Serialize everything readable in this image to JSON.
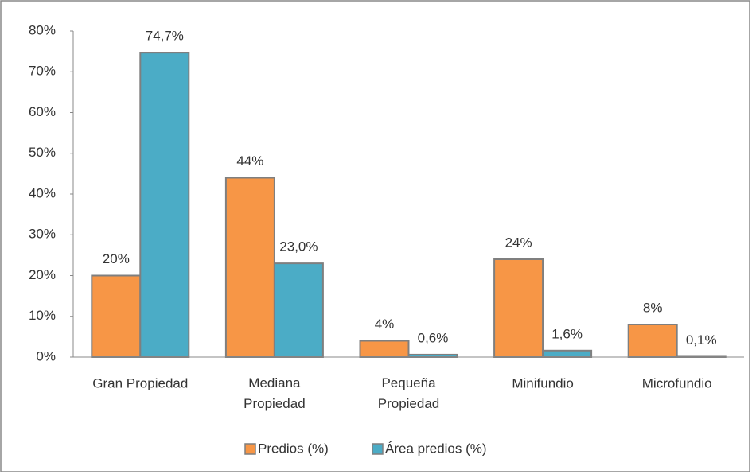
{
  "chart_data": {
    "type": "bar",
    "categories": [
      "Gran Propiedad",
      "Mediana\nPropiedad",
      "Pequeña\nPropiedad",
      "Minifundio",
      "Microfundio"
    ],
    "series": [
      {
        "name": "Predios (%)",
        "color": "#f79646",
        "values": [
          20,
          44,
          4,
          24,
          8
        ],
        "value_labels": [
          "20%",
          "44%",
          "4%",
          "24%",
          "8%"
        ]
      },
      {
        "name": "Área predios (%)",
        "color": "#4bacc6",
        "values": [
          74.7,
          23.0,
          0.6,
          1.6,
          0.1
        ],
        "value_labels": [
          "74,7%",
          "23,0%",
          "0,6%",
          "1,6%",
          "0,1%"
        ]
      }
    ],
    "ylim": [
      0,
      80
    ],
    "yticks": [
      {
        "value": 0,
        "label": "0%"
      },
      {
        "value": 10,
        "label": "10%"
      },
      {
        "value": 20,
        "label": "20%"
      },
      {
        "value": 30,
        "label": "30%"
      },
      {
        "value": 40,
        "label": "40%"
      },
      {
        "value": 50,
        "label": "50%"
      },
      {
        "value": 60,
        "label": "60%"
      },
      {
        "value": 70,
        "label": "70%"
      },
      {
        "value": 80,
        "label": "80%"
      }
    ],
    "grid": false,
    "legend": "bottom"
  }
}
